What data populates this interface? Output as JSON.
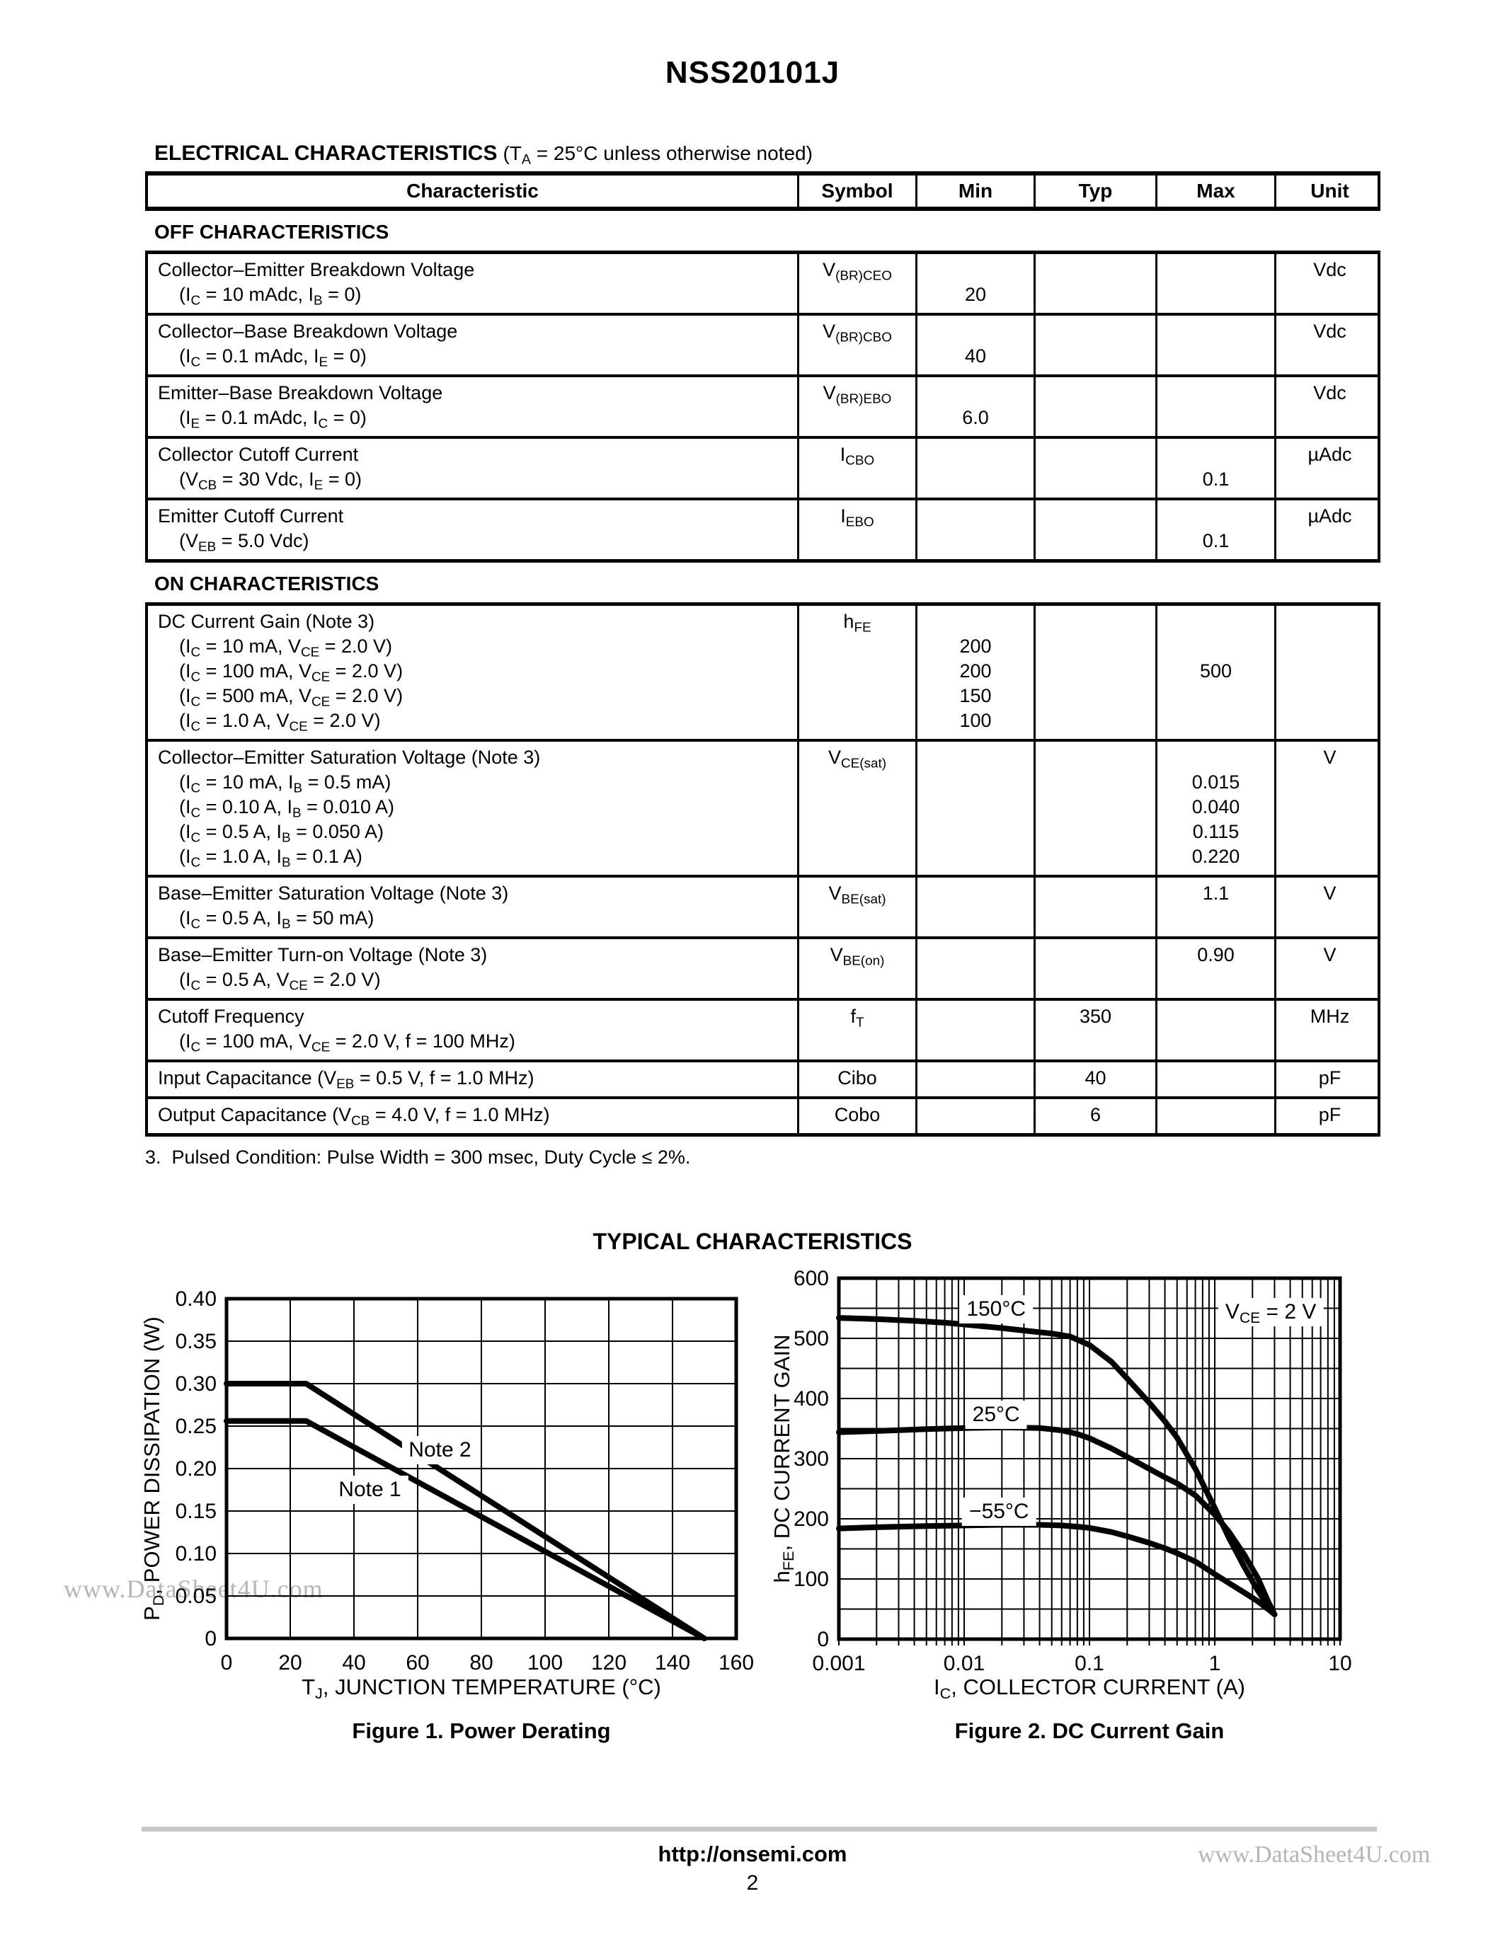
{
  "page": {
    "title": "NSS20101J",
    "page_number": "2",
    "footer_url": "http://onsemi.com",
    "watermark_chart": "www.DataSheet4U.com",
    "watermark_footer": "www.DataSheet4U.com"
  },
  "electrical": {
    "heading_bold": "ELECTRICAL CHARACTERISTICS",
    "heading_rest": "(T~A~ = 25°C unless otherwise noted)",
    "columns": [
      "Characteristic",
      "Symbol",
      "Min",
      "Typ",
      "Max",
      "Unit"
    ],
    "sections": [
      {
        "label": "OFF CHARACTERISTICS",
        "rows": [
          {
            "name": "Collector–Emitter Breakdown Voltage",
            "conds": [
              "(I~C~ = 10 mAdc, I~B~ = 0)"
            ],
            "symbol": "V~(BR)CEO~",
            "min": {
              "1": "20"
            },
            "typ": {},
            "max": {},
            "unit": "Vdc"
          },
          {
            "name": "Collector–Base Breakdown Voltage",
            "conds": [
              "(I~C~ = 0.1 mAdc, I~E~ = 0)"
            ],
            "symbol": "V~(BR)CBO~",
            "min": {
              "1": "40"
            },
            "typ": {},
            "max": {},
            "unit": "Vdc"
          },
          {
            "name": "Emitter–Base Breakdown Voltage",
            "conds": [
              "(I~E~ = 0.1 mAdc, I~C~ = 0)"
            ],
            "symbol": "V~(BR)EBO~",
            "min": {
              "1": "6.0"
            },
            "typ": {},
            "max": {},
            "unit": "Vdc"
          },
          {
            "name": "Collector Cutoff Current",
            "conds": [
              "(V~CB~ = 30 Vdc, I~E~ = 0)"
            ],
            "symbol": "I~CBO~",
            "min": {},
            "typ": {},
            "max": {
              "1": "0.1"
            },
            "unit": "µAdc"
          },
          {
            "name": "Emitter Cutoff Current",
            "conds": [
              "(V~EB~ = 5.0 Vdc)"
            ],
            "symbol": "I~EBO~",
            "min": {},
            "typ": {},
            "max": {
              "1": "0.1"
            },
            "unit": "µAdc"
          }
        ]
      },
      {
        "label": "ON CHARACTERISTICS",
        "rows": [
          {
            "name": "DC Current Gain (Note 3)",
            "conds": [
              "(I~C~ = 10 mA, V~CE~ = 2.0 V)",
              "(I~C~ = 100 mA, V~CE~ = 2.0 V)",
              "(I~C~ = 500 mA, V~CE~ = 2.0 V)",
              "(I~C~ = 1.0 A, V~CE~ = 2.0 V)"
            ],
            "symbol": "h~FE~",
            "min": {
              "1": "200",
              "2": "200",
              "3": "150",
              "4": "100"
            },
            "typ": {},
            "max": {
              "2": "500"
            },
            "unit": ""
          },
          {
            "name": "Collector–Emitter Saturation Voltage (Note 3)",
            "conds": [
              "(I~C~ = 10 mA, I~B~ = 0.5 mA)",
              "(I~C~ = 0.10 A, I~B~ = 0.010 A)",
              "(I~C~ = 0.5 A, I~B~ = 0.050 A)",
              "(I~C~ = 1.0 A, I~B~ = 0.1 A)"
            ],
            "symbol": "V~CE(sat)~",
            "min": {},
            "typ": {},
            "max": {
              "1": "0.015",
              "2": "0.040",
              "3": "0.115",
              "4": "0.220"
            },
            "unit": "V"
          },
          {
            "name": "Base–Emitter Saturation Voltage (Note 3)",
            "conds": [
              "(I~C~ = 0.5 A, I~B~ = 50 mA)"
            ],
            "symbol": "V~BE(sat)~",
            "min": {},
            "typ": {},
            "max": {
              "0": "1.1"
            },
            "unit": "V"
          },
          {
            "name": "Base–Emitter Turn-on Voltage (Note 3)",
            "conds": [
              "(I~C~ = 0.5 A, V~CE~ = 2.0 V)"
            ],
            "symbol": "V~BE(on)~",
            "min": {},
            "typ": {},
            "max": {
              "0": "0.90"
            },
            "unit": "V"
          },
          {
            "name": "Cutoff Frequency",
            "conds": [
              "(I~C~ = 100 mA, V~CE~ = 2.0 V, f = 100 MHz)"
            ],
            "symbol": "f~T~",
            "min": {},
            "typ": {
              "0": "350"
            },
            "max": {},
            "unit": "MHz"
          },
          {
            "name": "Input Capacitance (V~EB~ = 0.5 V, f = 1.0 MHz)",
            "conds": [],
            "symbol": "Cibo",
            "min": {},
            "typ": {
              "0": "40"
            },
            "max": {},
            "unit": "pF"
          },
          {
            "name": "Output Capacitance (V~CB~ = 4.0 V, f = 1.0 MHz)",
            "conds": [],
            "symbol": "Cobo",
            "min": {},
            "typ": {
              "0": "6"
            },
            "max": {},
            "unit": "pF"
          }
        ]
      }
    ],
    "note": "3.  Pulsed Condition: Pulse Width = 300 msec, Duty Cycle ≤ 2%."
  },
  "typical": {
    "heading": "TYPICAL CHARACTERISTICS"
  },
  "chart_data": [
    {
      "type": "line",
      "title": "Figure 1. Power Derating",
      "xlabel": "T~J~, JUNCTION TEMPERATURE (°C)",
      "ylabel": "P~D~, POWER DISSIPATION (W)",
      "grid": true,
      "legend": "none",
      "x_axis": {
        "type": "linear",
        "min": 0,
        "max": 160,
        "tick_step": 20,
        "tick_labels": [
          "0",
          "20",
          "40",
          "60",
          "80",
          "100",
          "120",
          "140",
          "160"
        ]
      },
      "y_axis": {
        "min": 0,
        "max": 0.4,
        "tick_step": 0.05,
        "minor_step": 0.05,
        "tick_labels": [
          "0",
          "0.05",
          "0.10",
          "0.15",
          "0.20",
          "0.25",
          "0.30",
          "0.35",
          "0.40"
        ]
      },
      "series": [
        {
          "name": "Note 2",
          "points": [
            [
              0,
              0.3
            ],
            [
              25,
              0.3
            ],
            [
              150,
              0
            ]
          ]
        },
        {
          "name": "Note 1",
          "points": [
            [
              0,
              0.256
            ],
            [
              25,
              0.256
            ],
            [
              150,
              0
            ]
          ]
        }
      ],
      "annotations": [
        {
          "text": "Note 2",
          "x": 67,
          "y": 0.222
        },
        {
          "text": "Note 1",
          "x": 45,
          "y": 0.175
        }
      ]
    },
    {
      "type": "line",
      "title": "Figure 2. DC Current Gain",
      "xlabel": "I~C~, COLLECTOR CURRENT (A)",
      "ylabel": "h~FE~, DC CURRENT GAIN",
      "grid": true,
      "legend": "none",
      "x_axis": {
        "type": "log",
        "min": 0.001,
        "max": 10,
        "tick_labels": [
          "0.001",
          "0.01",
          "0.1",
          "1",
          "10"
        ]
      },
      "y_axis": {
        "min": 0,
        "max": 600,
        "tick_step": 100,
        "minor_step": 50,
        "tick_labels": [
          "0",
          "100",
          "200",
          "300",
          "400",
          "500",
          "600"
        ]
      },
      "series": [
        {
          "name": "150°C",
          "points": [
            [
              0.001,
              534
            ],
            [
              0.002,
              532
            ],
            [
              0.004,
              529
            ],
            [
              0.007,
              526
            ],
            [
              0.01,
              523
            ],
            [
              0.02,
              517
            ],
            [
              0.03,
              513
            ],
            [
              0.05,
              508
            ],
            [
              0.07,
              503
            ],
            [
              0.1,
              489
            ],
            [
              0.15,
              461
            ],
            [
              0.2,
              433
            ],
            [
              0.3,
              393
            ],
            [
              0.4,
              362
            ],
            [
              0.5,
              335
            ],
            [
              0.7,
              283
            ],
            [
              1.0,
              218
            ],
            [
              1.3,
              168
            ],
            [
              1.7,
              122
            ],
            [
              2.2,
              81
            ],
            [
              2.7,
              53
            ],
            [
              3.0,
              41
            ]
          ]
        },
        {
          "name": "25°C",
          "points": [
            [
              0.001,
              344
            ],
            [
              0.002,
              346
            ],
            [
              0.005,
              349
            ],
            [
              0.01,
              351
            ],
            [
              0.02,
              352
            ],
            [
              0.04,
              351
            ],
            [
              0.06,
              347
            ],
            [
              0.08,
              341
            ],
            [
              0.1,
              334
            ],
            [
              0.15,
              317
            ],
            [
              0.2,
              303
            ],
            [
              0.3,
              283
            ],
            [
              0.4,
              269
            ],
            [
              0.5,
              259
            ],
            [
              0.7,
              239
            ],
            [
              1.0,
              207
            ],
            [
              1.3,
              178
            ],
            [
              1.7,
              142
            ],
            [
              2.2,
              102
            ],
            [
              2.7,
              60
            ],
            [
              3.0,
              41
            ]
          ]
        },
        {
          "name": "−55°C",
          "points": [
            [
              0.001,
              184
            ],
            [
              0.002,
              186
            ],
            [
              0.005,
              188
            ],
            [
              0.01,
              189
            ],
            [
              0.02,
              190
            ],
            [
              0.04,
              190
            ],
            [
              0.06,
              189
            ],
            [
              0.08,
              187
            ],
            [
              0.1,
              185
            ],
            [
              0.15,
              178
            ],
            [
              0.2,
              171
            ],
            [
              0.3,
              160
            ],
            [
              0.4,
              151
            ],
            [
              0.5,
              143
            ],
            [
              0.7,
              129
            ],
            [
              1.0,
              108
            ],
            [
              1.3,
              93
            ],
            [
              1.7,
              78
            ],
            [
              2.2,
              63
            ],
            [
              2.7,
              49
            ],
            [
              3.0,
              41
            ]
          ]
        }
      ],
      "annotations": [
        {
          "text": "150°C",
          "x": 0.018,
          "y": 548
        },
        {
          "text": "25°C",
          "x": 0.018,
          "y": 373
        },
        {
          "text": "−55°C",
          "x": 0.019,
          "y": 212
        },
        {
          "text": "V~CE~ = 2 V",
          "x": 2.8,
          "y": 543
        }
      ]
    }
  ]
}
